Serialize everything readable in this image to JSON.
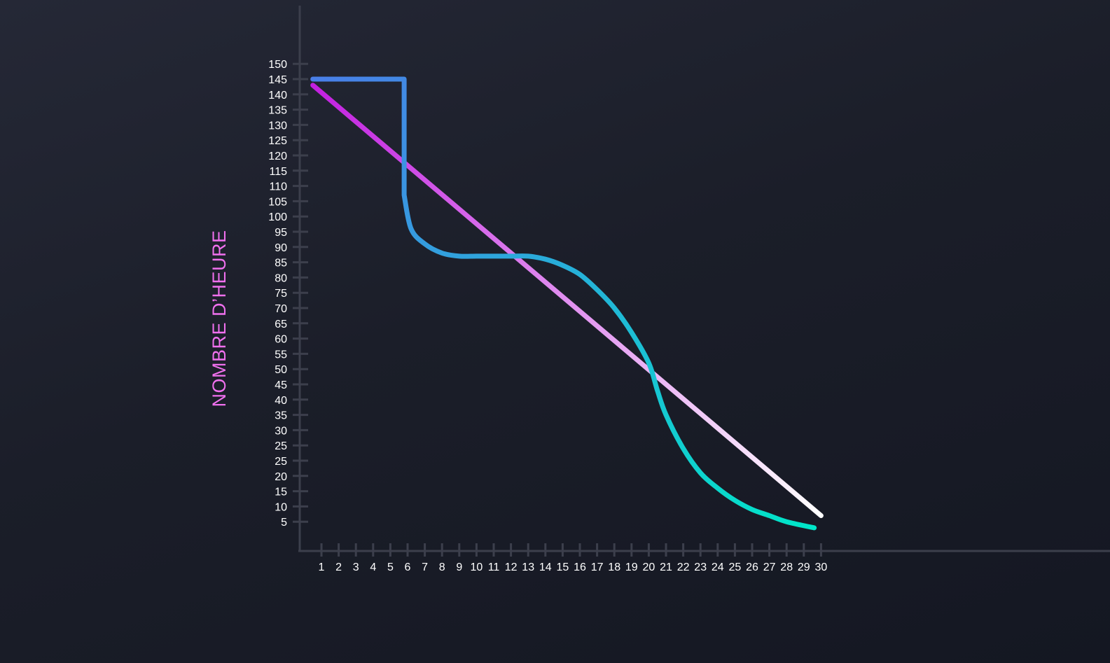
{
  "chart_data": {
    "type": "line",
    "title": "",
    "xlabel": "",
    "ylabel": "NOMBRE D’HEURE",
    "x_ticks": [
      "1",
      "2",
      "3",
      "4",
      "5",
      "6",
      "7",
      "8",
      "9",
      "10",
      "11",
      "12",
      "13",
      "14",
      "15",
      "16",
      "17",
      "18",
      "19",
      "20",
      "21",
      "22",
      "23",
      "24",
      "25",
      "26",
      "27",
      "28",
      "29",
      "30"
    ],
    "y_ticks": [
      "5",
      "10",
      "15",
      "20",
      "25",
      "25",
      "30",
      "35",
      "40",
      "45",
      "50",
      "55",
      "60",
      "65",
      "70",
      "75",
      "80",
      "85",
      "90",
      "95",
      "100",
      "105",
      "110",
      "115",
      "120",
      "125",
      "130",
      "135",
      "140",
      "145",
      "150"
    ],
    "xlim": [
      0.5,
      30
    ],
    "ylim": [
      0,
      150
    ],
    "grid": false,
    "legend": "none",
    "series": [
      {
        "color": "#c21ee0",
        "color_end": "#ffffff",
        "x": [
          0.5,
          30
        ],
        "y": [
          148,
          7
        ]
      },
      {
        "color": "#4a7ee8",
        "color_end": "#00e6c8",
        "x": [
          0.5,
          5.8,
          5.8,
          5.8,
          6.2,
          7,
          8,
          9,
          10,
          11,
          12,
          13,
          14,
          15,
          16,
          17,
          18,
          19,
          20,
          20.5,
          21,
          22,
          23,
          24,
          25,
          26,
          27,
          28,
          29.6
        ],
        "y": [
          150,
          150,
          120,
          112,
          101,
          96,
          93,
          92,
          92,
          92,
          92,
          92,
          91,
          89,
          86,
          81,
          75,
          67,
          57,
          48,
          40,
          29,
          21,
          16,
          12,
          9,
          7,
          5,
          3
        ]
      }
    ]
  }
}
